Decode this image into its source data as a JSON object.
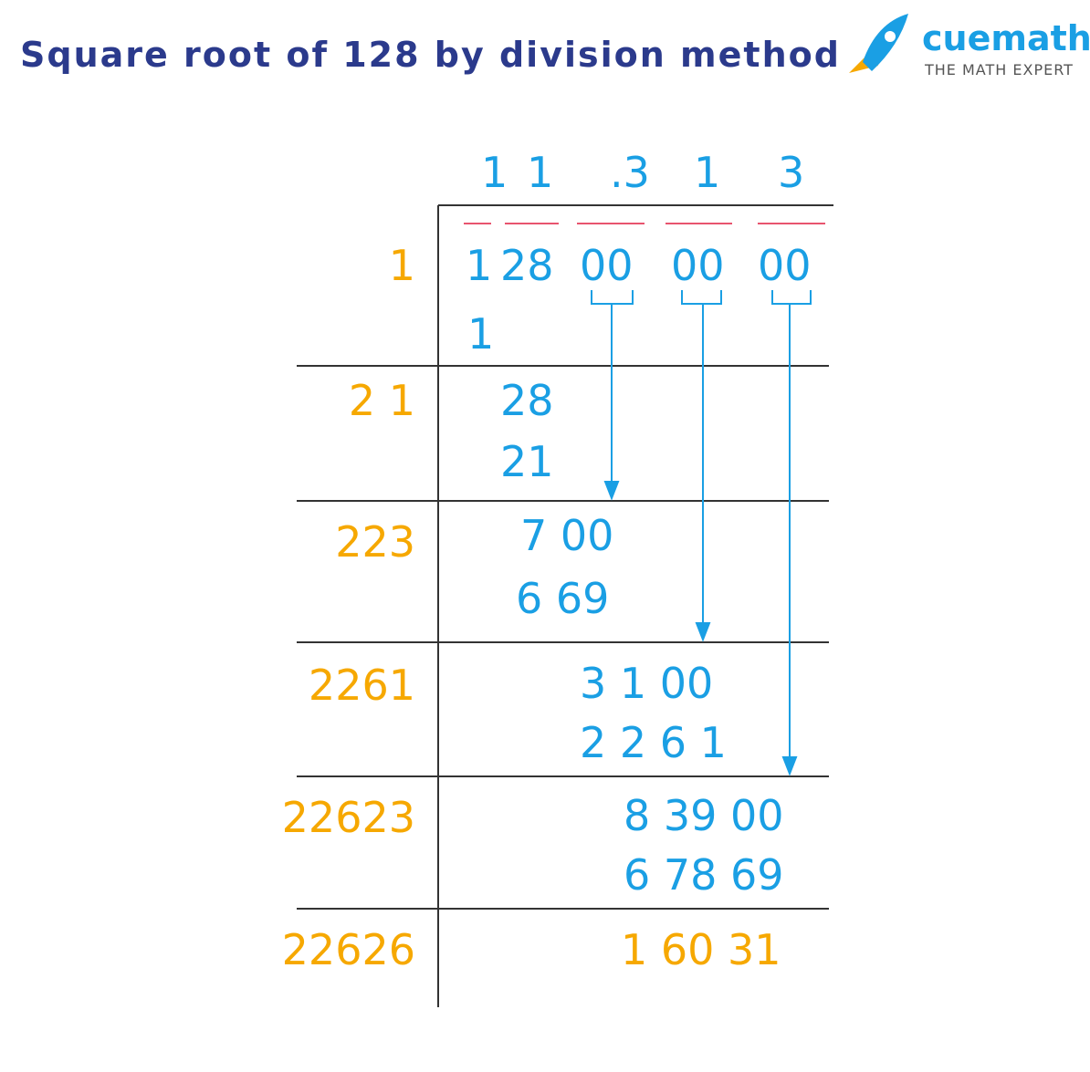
{
  "header": {
    "title": "Square root of 128 by division method",
    "brand": "cuemath",
    "tagline": "THE MATH EXPERT"
  },
  "quotient": [
    "1",
    "1",
    ".3",
    "1",
    "3"
  ],
  "dividend": [
    "1",
    "28",
    "00",
    "00",
    "00"
  ],
  "divisors": [
    "1",
    "2 1",
    "223",
    "2261",
    "22623",
    "22626"
  ],
  "steps": [
    {
      "subtract": "1"
    },
    {
      "remainder": "28",
      "subtract": "21"
    },
    {
      "remainder": "7 00",
      "subtract": "6 69"
    },
    {
      "remainder": "3 1 00",
      "subtract": "2 2 6 1"
    },
    {
      "remainder": "8 39 00",
      "subtract": "6 78 69"
    },
    {
      "remainder": "1 60 31"
    }
  ]
}
